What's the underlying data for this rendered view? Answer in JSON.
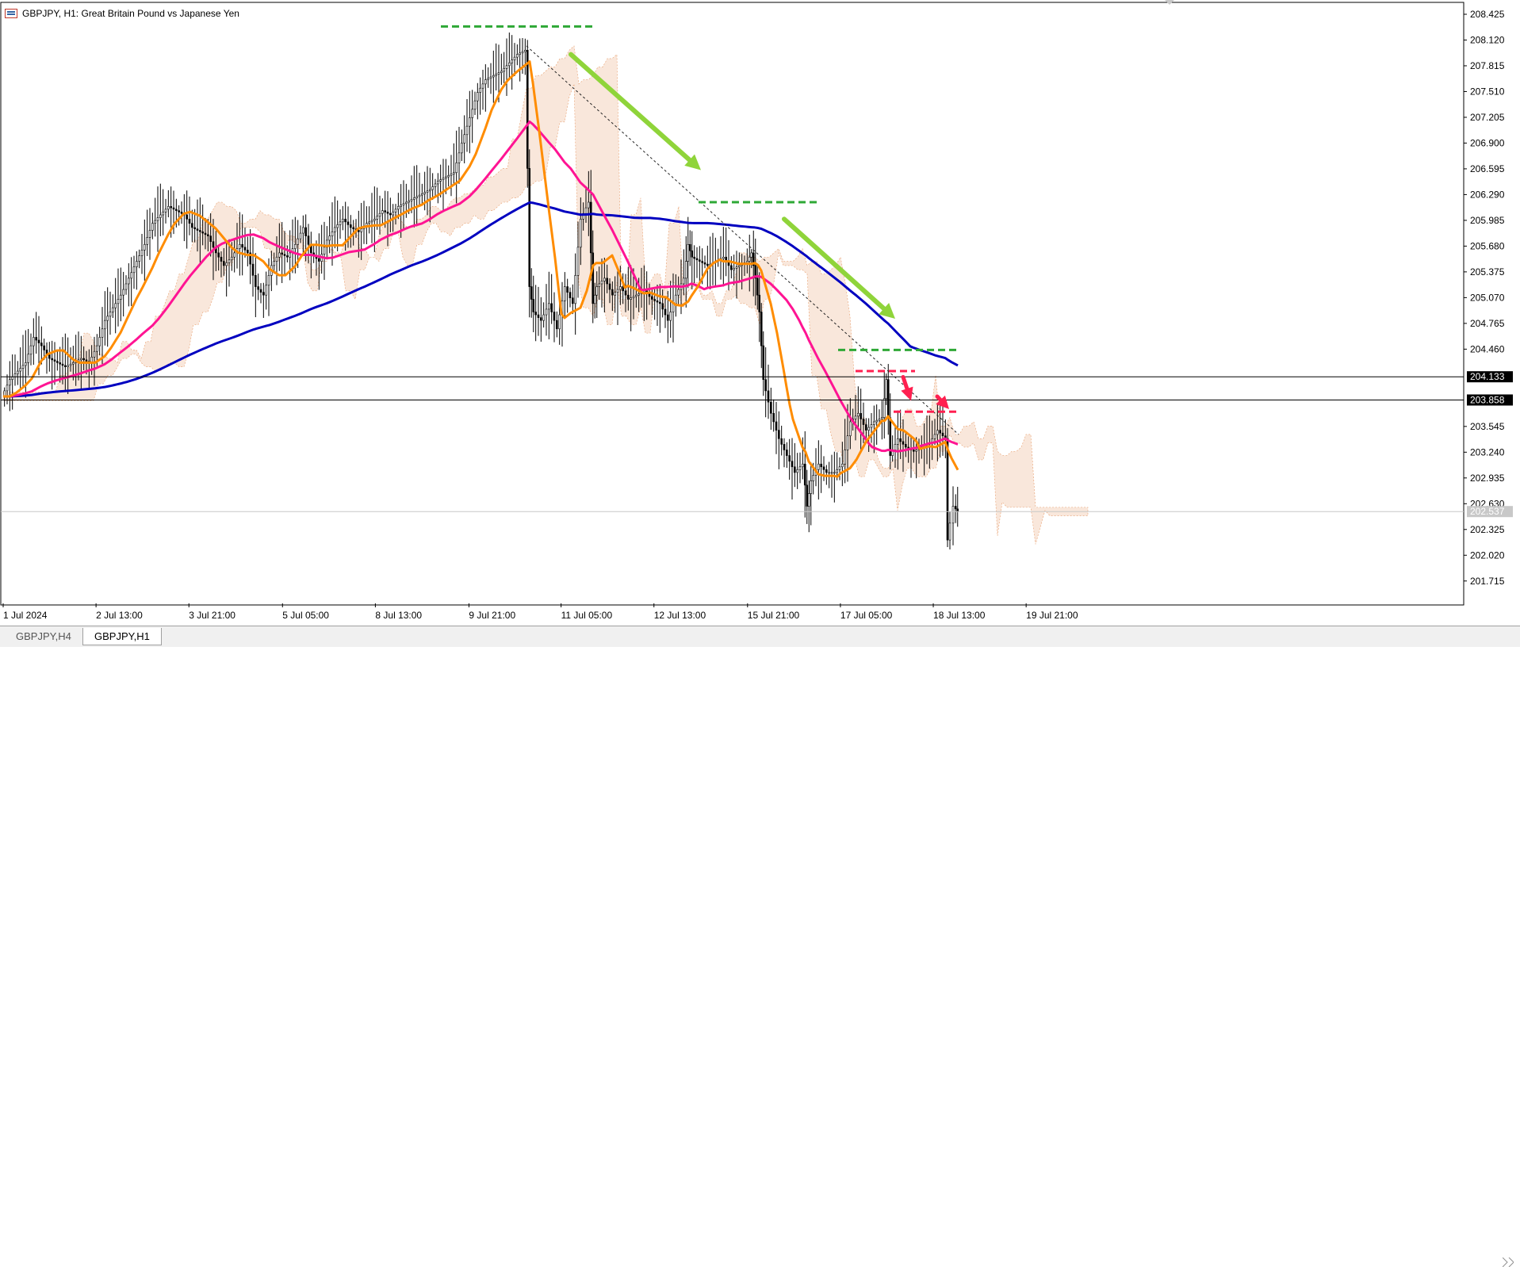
{
  "window": {
    "title": "GBPJPY, H1:  Great Britain Pound vs Japanese Yen"
  },
  "tabs": [
    {
      "label": "GBPJPY,H4",
      "active": false
    },
    {
      "label": "GBPJPY,H1",
      "active": true
    }
  ],
  "colors": {
    "ma_fast": "#ff8c00",
    "ma_mid": "#ff1493",
    "ma_slow": "#0000c0",
    "ichimoku_cloud_bear": "#e8a070",
    "ichimoku_cloud_bull": "#b8a8e0",
    "annotation_arrow": "#8fd43a",
    "level_green": "#2ea836",
    "level_red": "#ff2050",
    "price_line": "#000000"
  },
  "chart_data": {
    "type": "candlestick",
    "symbol": "GBPJPY",
    "timeframe": "H1",
    "ylim": [
      201.45,
      208.5
    ],
    "y_ticks": [
      "208.425",
      "208.120",
      "207.815",
      "207.510",
      "207.205",
      "206.900",
      "206.595",
      "206.290",
      "205.985",
      "205.680",
      "205.375",
      "205.070",
      "204.765",
      "204.460",
      "204.133",
      "203.858",
      "203.545",
      "203.240",
      "202.935",
      "202.630",
      "202.537",
      "202.325",
      "202.020",
      "201.715"
    ],
    "horizontal_levels": [
      204.133,
      203.858,
      202.537
    ],
    "x_ticks": [
      "1 Jul 2024",
      "2 Jul 13:00",
      "3 Jul 21:00",
      "5 Jul 05:00",
      "8 Jul 13:00",
      "9 Jul 21:00",
      "11 Jul 05:00",
      "12 Jul 13:00",
      "15 Jul 21:00",
      "17 Jul 05:00",
      "18 Jul 13:00",
      "19 Jul 21:00"
    ],
    "close_path": [
      [
        0,
        203.9
      ],
      [
        10,
        204.1
      ],
      [
        20,
        204.2
      ],
      [
        30,
        204.3
      ],
      [
        40,
        204.6
      ],
      [
        50,
        204.5
      ],
      [
        60,
        204.35
      ],
      [
        70,
        204.3
      ],
      [
        80,
        204.25
      ],
      [
        90,
        204.3
      ],
      [
        100,
        204.35
      ],
      [
        110,
        204.3
      ],
      [
        120,
        204.5
      ],
      [
        130,
        204.8
      ],
      [
        140,
        204.95
      ],
      [
        150,
        205.1
      ],
      [
        160,
        205.3
      ],
      [
        170,
        205.5
      ],
      [
        180,
        205.7
      ],
      [
        190,
        205.95
      ],
      [
        200,
        206.05
      ],
      [
        210,
        206.15
      ],
      [
        220,
        206.1
      ],
      [
        230,
        206.05
      ],
      [
        240,
        205.9
      ],
      [
        250,
        205.85
      ],
      [
        260,
        205.8
      ],
      [
        270,
        205.6
      ],
      [
        280,
        205.45
      ],
      [
        290,
        205.55
      ],
      [
        300,
        205.7
      ],
      [
        310,
        205.6
      ],
      [
        320,
        205.2
      ],
      [
        330,
        205.1
      ],
      [
        340,
        205.45
      ],
      [
        350,
        205.6
      ],
      [
        360,
        205.55
      ],
      [
        370,
        205.7
      ],
      [
        380,
        205.9
      ],
      [
        390,
        205.6
      ],
      [
        400,
        205.5
      ],
      [
        410,
        205.75
      ],
      [
        420,
        205.9
      ],
      [
        430,
        206.0
      ],
      [
        440,
        205.9
      ],
      [
        450,
        205.85
      ],
      [
        460,
        205.95
      ],
      [
        470,
        206.0
      ],
      [
        480,
        206.1
      ],
      [
        490,
        206.05
      ],
      [
        500,
        206.15
      ],
      [
        510,
        206.2
      ],
      [
        520,
        206.25
      ],
      [
        530,
        206.3
      ],
      [
        540,
        206.35
      ],
      [
        550,
        206.45
      ],
      [
        560,
        206.5
      ],
      [
        570,
        206.55
      ],
      [
        580,
        206.9
      ],
      [
        590,
        207.2
      ],
      [
        600,
        207.5
      ],
      [
        610,
        207.65
      ],
      [
        620,
        207.7
      ],
      [
        630,
        207.75
      ],
      [
        640,
        207.85
      ],
      [
        650,
        207.95
      ],
      [
        660,
        208.0
      ],
      [
        665,
        205.2
      ],
      [
        670,
        204.9
      ],
      [
        680,
        204.8
      ],
      [
        690,
        205.0
      ],
      [
        700,
        204.7
      ],
      [
        710,
        205.2
      ],
      [
        720,
        205.0
      ],
      [
        730,
        206.0
      ],
      [
        740,
        206.2
      ],
      [
        745,
        205.0
      ],
      [
        750,
        205.2
      ],
      [
        760,
        205.3
      ],
      [
        770,
        205.1
      ],
      [
        780,
        205.2
      ],
      [
        790,
        205.05
      ],
      [
        800,
        205.1
      ],
      [
        810,
        205.15
      ],
      [
        820,
        205.05
      ],
      [
        830,
        205.0
      ],
      [
        840,
        204.8
      ],
      [
        850,
        205.1
      ],
      [
        860,
        205.3
      ],
      [
        865,
        205.7
      ],
      [
        870,
        205.55
      ],
      [
        880,
        205.5
      ],
      [
        890,
        205.45
      ],
      [
        900,
        205.5
      ],
      [
        910,
        205.55
      ],
      [
        920,
        205.4
      ],
      [
        930,
        205.45
      ],
      [
        940,
        205.5
      ],
      [
        945,
        205.6
      ],
      [
        950,
        205.3
      ],
      [
        955,
        204.9
      ],
      [
        960,
        204.1
      ],
      [
        970,
        203.7
      ],
      [
        980,
        203.4
      ],
      [
        990,
        203.2
      ],
      [
        1000,
        203.0
      ],
      [
        1010,
        203.1
      ],
      [
        1015,
        202.6
      ],
      [
        1020,
        202.9
      ],
      [
        1030,
        203.1
      ],
      [
        1040,
        203.0
      ],
      [
        1050,
        203.0
      ],
      [
        1060,
        203.1
      ],
      [
        1070,
        203.6
      ],
      [
        1080,
        203.7
      ],
      [
        1090,
        203.5
      ],
      [
        1100,
        203.6
      ],
      [
        1110,
        203.65
      ],
      [
        1115,
        204.1
      ],
      [
        1120,
        203.2
      ],
      [
        1130,
        203.4
      ],
      [
        1140,
        203.3
      ],
      [
        1150,
        203.25
      ],
      [
        1160,
        203.3
      ],
      [
        1170,
        203.35
      ],
      [
        1180,
        203.5
      ],
      [
        1190,
        203.4
      ],
      [
        1192,
        202.2
      ],
      [
        1196,
        202.4
      ],
      [
        1200,
        202.6
      ],
      [
        1205,
        202.537
      ]
    ],
    "indicators": [
      {
        "type": "ma",
        "color_key": "ma_fast"
      },
      {
        "type": "ma",
        "color_key": "ma_mid"
      },
      {
        "type": "ma",
        "color_key": "ma_slow"
      },
      {
        "type": "ichimoku_cloud"
      }
    ],
    "current_price": 202.537
  }
}
